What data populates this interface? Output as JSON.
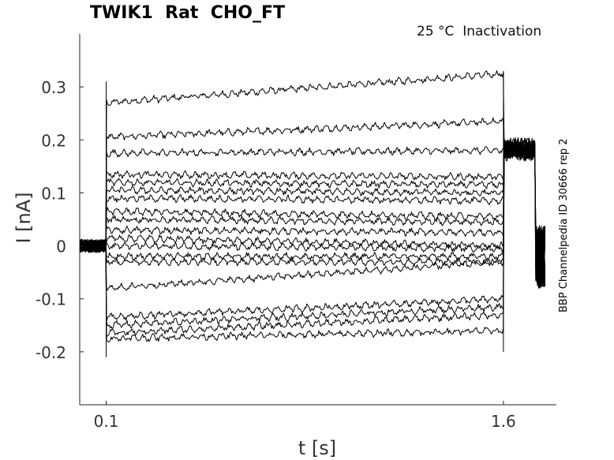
{
  "chart_data": {
    "type": "line",
    "title": "TWIK1  Rat  CHO_FT",
    "subtitle": "25 °C  Inactivation",
    "side_label": "BBP Channelpedia ID 30666 rep 2",
    "xlabel": "t [s]",
    "ylabel": "I [nA]",
    "xlim": [
      0.0,
      1.8
    ],
    "ylim": [
      -0.3,
      0.4
    ],
    "x_ticks": [
      0.1,
      1.6
    ],
    "x_tick_labels": [
      "0.1",
      "1.6"
    ],
    "y_ticks": [
      0.3,
      0.2,
      0.1,
      0,
      -0.1,
      -0.2
    ],
    "y_tick_labels": [
      "0.3",
      "0.2",
      "0.1",
      "0",
      "-0.1",
      "-0.2"
    ],
    "grid": false,
    "stimulus": {
      "pulse_start": 0.1,
      "pulse_end": 1.6,
      "sweep_end": 1.76
    },
    "series": [
      {
        "start": 0.27,
        "end": 0.325,
        "after": 0.19
      },
      {
        "start": 0.205,
        "end": 0.235,
        "after": 0.185
      },
      {
        "start": 0.175,
        "end": 0.18,
        "after": 0.18
      },
      {
        "start": 0.135,
        "end": 0.13,
        "after": 0.18
      },
      {
        "start": 0.12,
        "end": 0.115,
        "after": 0.185
      },
      {
        "start": 0.105,
        "end": 0.1,
        "after": 0.19
      },
      {
        "start": 0.09,
        "end": 0.085,
        "after": 0.18
      },
      {
        "start": 0.065,
        "end": 0.055,
        "after": 0.175
      },
      {
        "start": 0.05,
        "end": 0.045,
        "after": 0.18
      },
      {
        "start": 0.03,
        "end": 0.025,
        "after": 0.185
      },
      {
        "start": 0.015,
        "end": 0.0,
        "after": 0.175
      },
      {
        "start": 0.0,
        "end": -0.005,
        "after": 0.18
      },
      {
        "start": -0.02,
        "end": -0.02,
        "after": 0.19
      },
      {
        "start": -0.03,
        "end": -0.03,
        "after": 0.185
      },
      {
        "start": -0.08,
        "end": -0.03,
        "after": 0.18
      },
      {
        "start": -0.135,
        "end": -0.1,
        "after": 0.19
      },
      {
        "start": -0.15,
        "end": -0.115,
        "after": 0.18
      },
      {
        "start": -0.165,
        "end": -0.13,
        "after": 0.185
      },
      {
        "start": -0.175,
        "end": -0.16,
        "after": 0.175
      }
    ]
  }
}
